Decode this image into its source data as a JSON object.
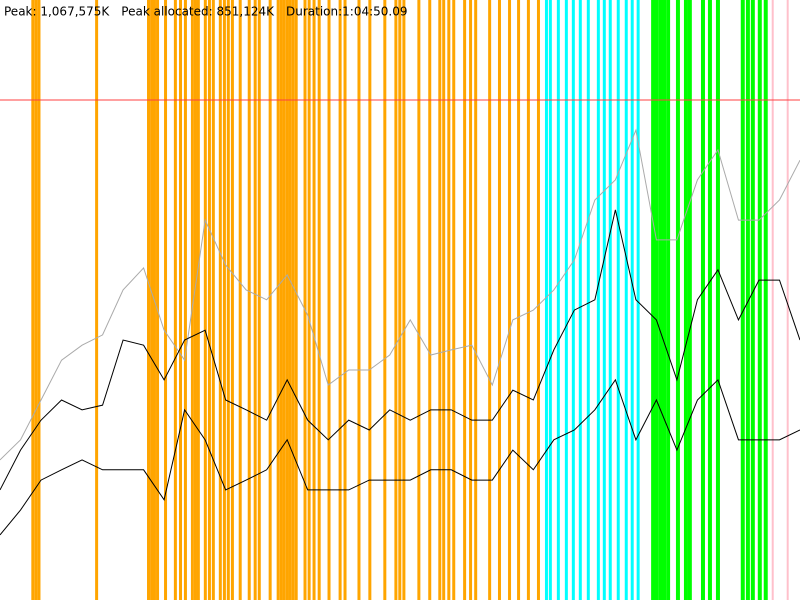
{
  "header": {
    "peak": "Peak: 1,067,575K",
    "peak_allocated": "Peak allocated: 851,124K",
    "duration": "Duration:1:04:50.09"
  },
  "chart_data": {
    "type": "line",
    "xlim": [
      0,
      3900
    ],
    "ylim": [
      0,
      1281000
    ],
    "x": [
      0,
      100,
      200,
      300,
      400,
      500,
      600,
      700,
      800,
      900,
      1000,
      1100,
      1200,
      1300,
      1400,
      1500,
      1600,
      1700,
      1800,
      1900,
      2000,
      2100,
      2200,
      2300,
      2400,
      2500,
      2600,
      2700,
      2800,
      2900,
      3000,
      3100,
      3200,
      3300,
      3400,
      3500,
      3600,
      3700,
      3800,
      3900
    ],
    "series": [
      {
        "color": "#aaaaaa",
        "values": [
          299000,
          342000,
          427000,
          512000,
          544000,
          566000,
          662000,
          709000,
          576000,
          512000,
          811000,
          715000,
          662000,
          641000,
          694000,
          608000,
          459000,
          491000,
          491000,
          523000,
          598000,
          523000,
          534000,
          544000,
          459000,
          598000,
          619000,
          662000,
          726000,
          854000,
          897000,
          1003000,
          769000,
          769000,
          897000,
          961000,
          811000,
          811000,
          854000,
          939000
        ]
      },
      {
        "color": "#000000",
        "values": [
          235000,
          320000,
          384000,
          427000,
          406000,
          416000,
          555000,
          544000,
          470000,
          555000,
          576000,
          427000,
          406000,
          384000,
          470000,
          384000,
          342000,
          384000,
          363000,
          406000,
          384000,
          406000,
          406000,
          384000,
          384000,
          448000,
          427000,
          534000,
          619000,
          641000,
          833000,
          641000,
          598000,
          470000,
          641000,
          705000,
          598000,
          683000,
          683000,
          555000
        ]
      },
      {
        "color": "#000000",
        "values": [
          139000,
          192000,
          256000,
          278000,
          299000,
          278000,
          278000,
          278000,
          214000,
          406000,
          342000,
          235000,
          256000,
          278000,
          342000,
          235000,
          235000,
          235000,
          256000,
          256000,
          256000,
          278000,
          278000,
          256000,
          256000,
          320000,
          278000,
          342000,
          363000,
          406000,
          470000,
          342000,
          427000,
          320000,
          427000,
          470000,
          342000,
          342000,
          342000,
          363000
        ]
      }
    ],
    "events": [
      {
        "color": "#ffa500",
        "width": 3,
        "times": [
          160,
          175,
          190,
          471,
          724,
          739,
          753,
          768,
          807,
          855,
          880,
          904,
          938,
          953,
          967,
          1001,
          1021,
          1040,
          1074,
          1094,
          1113,
          1133,
          1171,
          1215,
          1244,
          1264,
          1317,
          1356,
          1371,
          1385,
          1400,
          1414,
          1429,
          1444,
          1487,
          1507,
          1531,
          1556,
          1604,
          1658,
          1682,
          1750,
          1803,
          1876,
          1930,
          1949,
          1969,
          2042,
          2095,
          2144,
          2163,
          2188,
          2212,
          2265,
          2294,
          2319,
          2387,
          2435,
          2484,
          2528,
          2576,
          2625
        ]
      },
      {
        "color": "#00ffff",
        "width": 3,
        "times": [
          2664,
          2683,
          2722,
          2761,
          2795,
          2829,
          2868,
          2917,
          2946,
          2975,
          3014,
          3053,
          3082,
          3111
        ]
      },
      {
        "color": "#00ff00",
        "width": 4,
        "times": [
          3184,
          3198,
          3218,
          3237,
          3257,
          3305,
          3344,
          3363,
          3427,
          3461,
          3500,
          3621,
          3646,
          3670,
          3704,
          3733
        ]
      },
      {
        "color": "#ffc0cb",
        "width": 2,
        "times": [
          3767,
          3840
        ]
      }
    ],
    "peak_line": {
      "value": 1067575,
      "color": "#ff4040"
    }
  }
}
